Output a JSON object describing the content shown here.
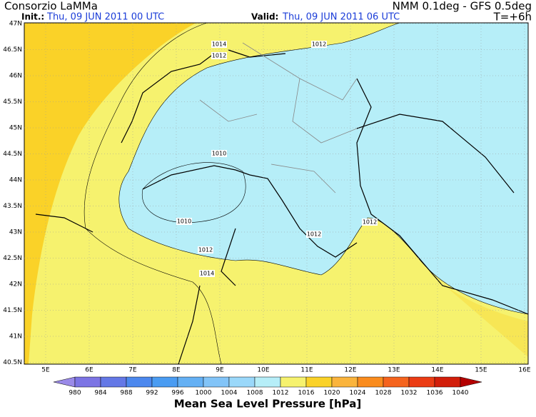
{
  "header": {
    "title": "Consorzio LaMMa",
    "model": "NMM 0.1deg - GFS 0.5deg",
    "init_label": "Init.:",
    "init_time": "Thu, 09 JUN 2011  00 UTC",
    "valid_label": "Valid:",
    "valid_time": "Thu, 09 JUN 2011  06 UTC",
    "step": "T=+6h"
  },
  "map": {
    "lat_labels": [
      "47N",
      "46.5N",
      "46N",
      "45.5N",
      "45N",
      "44.5N",
      "44N",
      "43.5N",
      "43N",
      "42.5N",
      "42N",
      "41.5N",
      "41N",
      "40.5N"
    ],
    "lon_labels": [
      "5E",
      "6E",
      "7E",
      "8E",
      "9E",
      "10E",
      "11E",
      "12E",
      "13E",
      "14E",
      "15E",
      "16E"
    ],
    "contour_labels": [
      "1014",
      "1012",
      "1012",
      "1010",
      "1010",
      "1012",
      "1014",
      "1012",
      "1012"
    ]
  },
  "colorbar": {
    "title": "Mean Sea Level Pressure [hPa]",
    "levels": [
      980,
      984,
      988,
      992,
      996,
      1000,
      1004,
      1008,
      1012,
      1016,
      1020,
      1024,
      1028,
      1032,
      1036,
      1040
    ],
    "colors": [
      "#9a8ae8",
      "#7c74e4",
      "#6478e6",
      "#4c88ee",
      "#4a9cf2",
      "#64b0f4",
      "#82c4f8",
      "#9ad8fa",
      "#b6eef8",
      "#f6f26e",
      "#fad228",
      "#fab43c",
      "#fa8c1e",
      "#f5641e",
      "#eb3c14",
      "#d21e0a",
      "#b40000"
    ]
  }
}
